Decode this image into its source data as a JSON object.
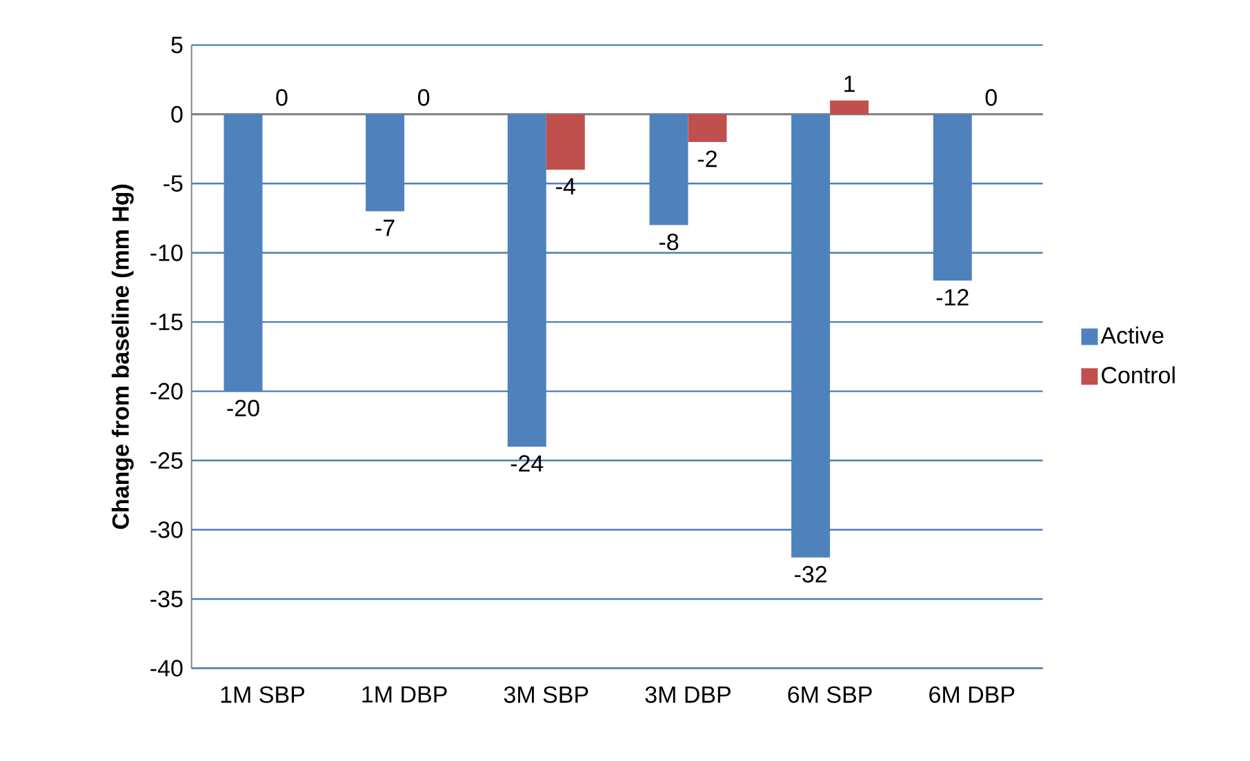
{
  "chart_data": {
    "type": "bar",
    "ylabel": "**Change from baseline (mm Hg)**",
    "categories": [
      "1M SBP",
      "1M DBP",
      "3M SBP",
      "3M DBP",
      "6M SBP",
      "6M DBP"
    ],
    "series": [
      {
        "name": "Active",
        "color": "#4f81bd",
        "values": [
          -20,
          -7,
          -24,
          -8,
          -32,
          -12
        ]
      },
      {
        "name": "Control",
        "color": "#c0504d",
        "values": [
          0,
          0,
          -4,
          -2,
          1,
          0
        ]
      }
    ],
    "ylim": [
      -40,
      5
    ],
    "yticks": [
      5,
      0,
      -5,
      -10,
      -15,
      -20,
      -25,
      -30,
      -35,
      -40
    ],
    "grid": "y",
    "legend": "right",
    "data_labels": true
  }
}
